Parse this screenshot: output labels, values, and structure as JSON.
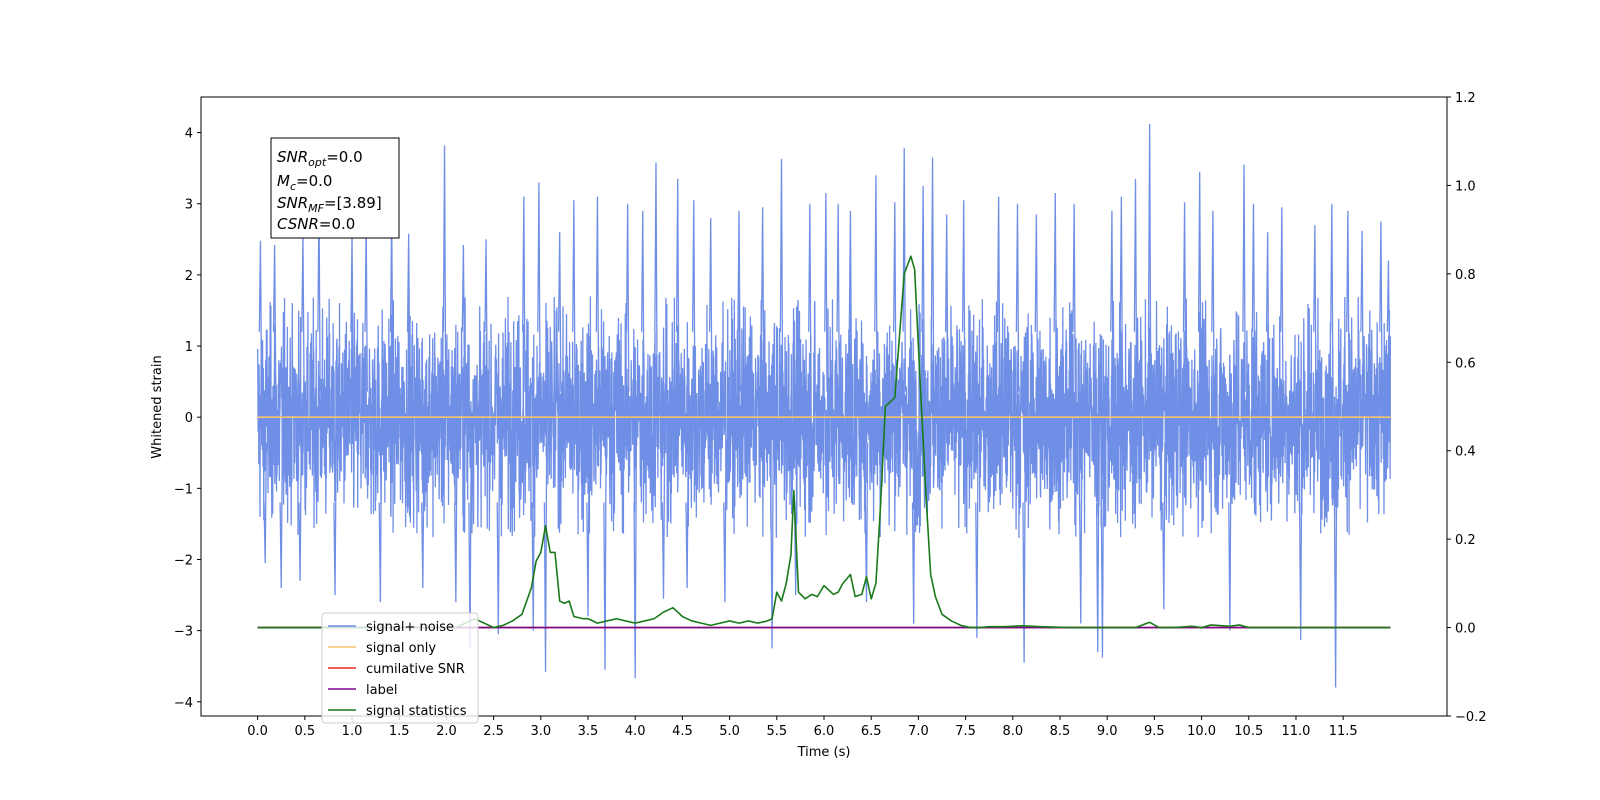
{
  "chart_data": {
    "type": "line",
    "xlabel": "Time (s)",
    "ylabel": "Whitened strain",
    "xlim": [
      -0.6,
      12.6
    ],
    "ylim": [
      -4.2,
      4.5
    ],
    "y2lim": [
      -0.2,
      1.2
    ],
    "x_ticks": [
      0.0,
      0.5,
      1.0,
      1.5,
      2.0,
      2.5,
      3.0,
      3.5,
      4.0,
      4.5,
      5.0,
      5.5,
      6.0,
      6.5,
      7.0,
      7.5,
      8.0,
      8.5,
      9.0,
      9.5,
      10.0,
      10.5,
      11.0,
      11.5
    ],
    "x_tick_labels": [
      "0.0",
      "0.5",
      "1.0",
      "1.5",
      "2.0",
      "2.5",
      "3.0",
      "3.5",
      "4.0",
      "4.5",
      "5.0",
      "5.5",
      "6.0",
      "6.5",
      "7.0",
      "7.5",
      "8.0",
      "8.5",
      "9.0",
      "9.5",
      "10.0",
      "10.5",
      "11.0",
      "11.5"
    ],
    "y_ticks": [
      4,
      3,
      2,
      1,
      0,
      -1,
      -2,
      -3,
      -4
    ],
    "y_tick_labels": [
      "4",
      "3",
      "2",
      "1",
      "0",
      "−1",
      "−2",
      "−3",
      "−4"
    ],
    "y2_ticks": [
      1.2,
      1.0,
      0.8,
      0.6,
      0.4,
      0.2,
      0.0,
      -0.2
    ],
    "y2_tick_labels": [
      "1.2",
      "1.0",
      "0.8",
      "0.6",
      "0.4",
      "0.2",
      "0.0",
      "−0.2"
    ],
    "grid": false,
    "legend_position": "lower-left",
    "series": [
      {
        "name": "signal+ noise",
        "axis": "left",
        "color": "#6f8ee6",
        "note_values": "dense noise trace from 0.0 to 12.0 s, bulk within about ±1.6, spikes up to 4.12 and down to −3.8",
        "spikes": [
          [
            0.03,
            2.48
          ],
          [
            0.08,
            -2.05
          ],
          [
            0.18,
            2.42
          ],
          [
            0.25,
            -2.4
          ],
          [
            0.45,
            -2.3
          ],
          [
            0.48,
            2.55
          ],
          [
            0.65,
            3.08
          ],
          [
            0.82,
            -2.5
          ],
          [
            1.0,
            2.55
          ],
          [
            1.15,
            2.75
          ],
          [
            1.3,
            -2.6
          ],
          [
            1.42,
            2.9
          ],
          [
            1.6,
            2.58
          ],
          [
            1.75,
            -2.4
          ],
          [
            1.98,
            3.82
          ],
          [
            2.1,
            -2.6
          ],
          [
            2.18,
            2.42
          ],
          [
            2.25,
            -3.25
          ],
          [
            2.42,
            2.5
          ],
          [
            2.55,
            -3.05
          ],
          [
            2.82,
            3.1
          ],
          [
            2.92,
            -3.0
          ],
          [
            2.98,
            3.3
          ],
          [
            3.05,
            -3.58
          ],
          [
            3.2,
            2.6
          ],
          [
            3.35,
            3.05
          ],
          [
            3.5,
            -2.8
          ],
          [
            3.6,
            3.1
          ],
          [
            3.68,
            -3.55
          ],
          [
            3.92,
            3.0
          ],
          [
            4.0,
            -3.67
          ],
          [
            4.08,
            2.9
          ],
          [
            4.22,
            3.58
          ],
          [
            4.3,
            -2.55
          ],
          [
            4.45,
            3.35
          ],
          [
            4.55,
            -2.4
          ],
          [
            4.62,
            3.05
          ],
          [
            4.8,
            2.8
          ],
          [
            4.95,
            -2.6
          ],
          [
            5.1,
            2.9
          ],
          [
            5.35,
            2.95
          ],
          [
            5.45,
            -3.25
          ],
          [
            5.55,
            3.63
          ],
          [
            5.7,
            -2.5
          ],
          [
            5.85,
            3.0
          ],
          [
            6.02,
            3.15
          ],
          [
            6.15,
            3.0
          ],
          [
            6.28,
            2.9
          ],
          [
            6.45,
            -2.6
          ],
          [
            6.55,
            3.4
          ],
          [
            6.75,
            3.02
          ],
          [
            6.85,
            3.78
          ],
          [
            6.95,
            -2.9
          ],
          [
            7.05,
            3.25
          ],
          [
            7.15,
            3.65
          ],
          [
            7.3,
            2.85
          ],
          [
            7.48,
            3.05
          ],
          [
            7.62,
            -3.1
          ],
          [
            7.85,
            3.1
          ],
          [
            8.05,
            3.0
          ],
          [
            8.12,
            -3.45
          ],
          [
            8.25,
            2.85
          ],
          [
            8.45,
            3.15
          ],
          [
            8.65,
            3.0
          ],
          [
            8.72,
            -2.9
          ],
          [
            8.9,
            -3.3
          ],
          [
            8.95,
            -3.38
          ],
          [
            9.05,
            2.9
          ],
          [
            9.15,
            3.1
          ],
          [
            9.3,
            3.35
          ],
          [
            9.45,
            4.12
          ],
          [
            9.6,
            -2.7
          ],
          [
            9.82,
            3.02
          ],
          [
            9.98,
            3.45
          ],
          [
            10.12,
            2.9
          ],
          [
            10.3,
            -3.0
          ],
          [
            10.45,
            3.55
          ],
          [
            10.55,
            3.0
          ],
          [
            10.7,
            2.6
          ],
          [
            10.85,
            2.95
          ],
          [
            11.05,
            -3.13
          ],
          [
            11.2,
            2.7
          ],
          [
            11.38,
            3.0
          ],
          [
            11.42,
            -3.8
          ],
          [
            11.55,
            2.9
          ],
          [
            11.7,
            2.62
          ],
          [
            11.9,
            2.75
          ],
          [
            11.98,
            2.2
          ]
        ]
      },
      {
        "name": "signal only",
        "axis": "left",
        "color": "#f7c46c",
        "x": [
          0.0,
          12.0
        ],
        "y": [
          0.0,
          0.0
        ]
      },
      {
        "name": "cumilative SNR",
        "axis": "right",
        "color": "#e8281e",
        "x": [
          0.0,
          12.0
        ],
        "y": [
          0.0,
          0.0
        ]
      },
      {
        "name": "label",
        "axis": "right",
        "color": "#7a0a8c",
        "x": [
          0.0,
          12.0
        ],
        "y": [
          0.0,
          0.0
        ]
      },
      {
        "name": "signal statistics",
        "axis": "right",
        "color": "#1a7a1a",
        "x": [
          0.0,
          2.1,
          2.3,
          2.5,
          2.6,
          2.7,
          2.8,
          2.9,
          2.95,
          3.0,
          3.05,
          3.1,
          3.15,
          3.2,
          3.25,
          3.3,
          3.35,
          3.45,
          3.5,
          3.6,
          3.7,
          3.8,
          3.9,
          4.0,
          4.1,
          4.2,
          4.3,
          4.4,
          4.5,
          4.6,
          4.7,
          4.8,
          4.9,
          5.0,
          5.1,
          5.2,
          5.3,
          5.4,
          5.45,
          5.5,
          5.55,
          5.6,
          5.65,
          5.68,
          5.73,
          5.8,
          5.87,
          5.93,
          6.0,
          6.05,
          6.1,
          6.15,
          6.2,
          6.28,
          6.33,
          6.4,
          6.45,
          6.5,
          6.55,
          6.6,
          6.65,
          6.7,
          6.75,
          6.85,
          6.92,
          6.96,
          7.02,
          7.08,
          7.13,
          7.18,
          7.25,
          7.35,
          7.45,
          7.55,
          7.65,
          7.75,
          7.9,
          8.1,
          8.3,
          8.6,
          9.0,
          9.3,
          9.45,
          9.55,
          9.7,
          9.9,
          10.0,
          10.1,
          10.3,
          10.4,
          10.5,
          12.0
        ],
        "y": [
          0.0,
          0.0,
          0.02,
          0.0,
          0.005,
          0.015,
          0.03,
          0.09,
          0.15,
          0.17,
          0.23,
          0.17,
          0.17,
          0.06,
          0.055,
          0.06,
          0.025,
          0.02,
          0.02,
          0.01,
          0.015,
          0.02,
          0.015,
          0.01,
          0.015,
          0.02,
          0.035,
          0.045,
          0.025,
          0.015,
          0.01,
          0.005,
          0.01,
          0.015,
          0.01,
          0.015,
          0.01,
          0.015,
          0.02,
          0.08,
          0.06,
          0.1,
          0.165,
          0.31,
          0.08,
          0.065,
          0.075,
          0.07,
          0.095,
          0.085,
          0.075,
          0.08,
          0.1,
          0.12,
          0.07,
          0.075,
          0.115,
          0.065,
          0.1,
          0.28,
          0.5,
          0.51,
          0.52,
          0.8,
          0.84,
          0.81,
          0.55,
          0.3,
          0.12,
          0.07,
          0.03,
          0.015,
          0.005,
          0.0,
          0.0,
          0.002,
          0.002,
          0.004,
          0.002,
          0.0,
          0.0,
          0.0,
          0.012,
          0.0,
          0.0,
          0.003,
          0.0,
          0.006,
          0.003,
          0.006,
          0.0,
          0.0
        ]
      }
    ],
    "annotation": {
      "snr_opt": "=0.0",
      "mc": "=0.0",
      "snr_mf": "=[3.89]",
      "csnr": "=0.0"
    },
    "legend": [
      "signal+ noise",
      "signal only",
      "cumilative SNR",
      "label",
      "signal statistics"
    ]
  }
}
